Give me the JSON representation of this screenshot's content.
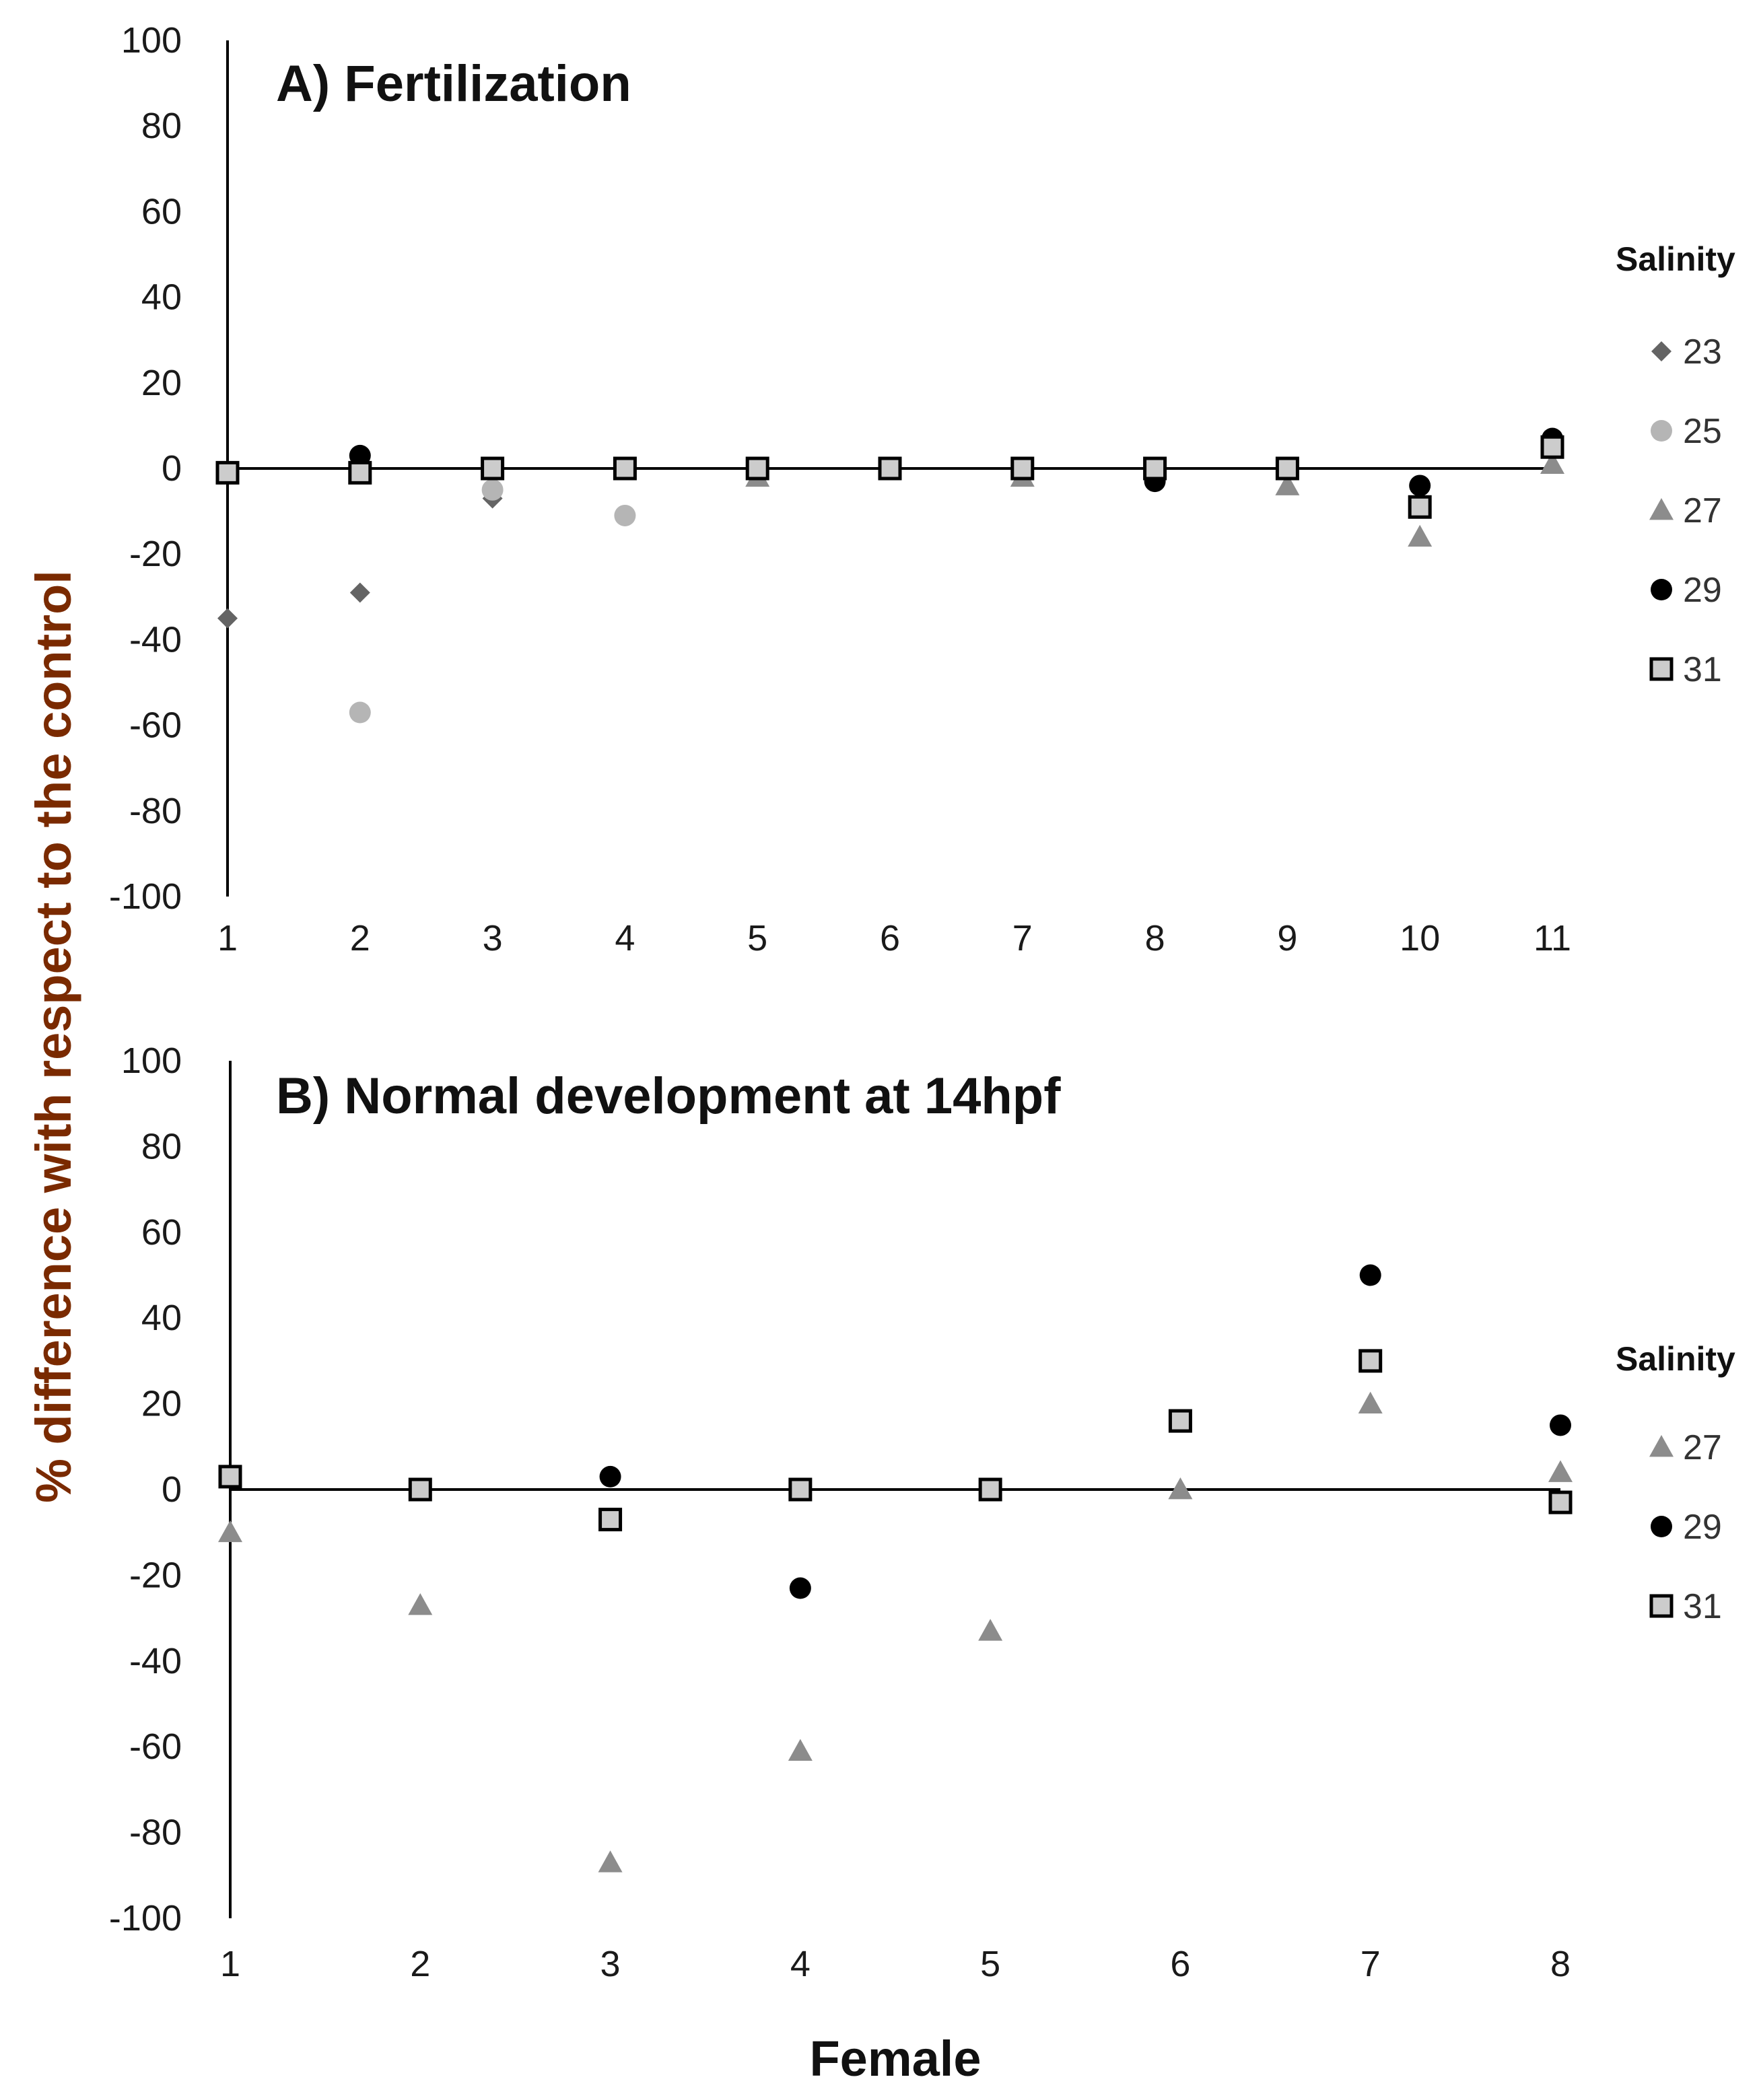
{
  "colors": {
    "23": "#646464",
    "25": "#b5b5b5",
    "27": "#8c8c8c",
    "29": "#000000",
    "31": "#cccccc",
    "axis": "#000000",
    "text": "#1a1a1a"
  },
  "ylabel": "% difference with respect to the control",
  "xlabel": "Female",
  "chart_data": [
    {
      "type": "scatter",
      "title": "A) Fertilization",
      "xlabel": "Female",
      "ylabel": "% difference with respect to the control",
      "x": [
        1,
        2,
        3,
        4,
        5,
        6,
        7,
        8,
        9,
        10,
        11
      ],
      "ylim": [
        -100,
        100
      ],
      "yticks": [
        100,
        80,
        60,
        40,
        20,
        0,
        -20,
        -40,
        -60,
        -80,
        -100
      ],
      "legend_title": "Salinity",
      "legend_position": "right",
      "series": [
        {
          "name": "23",
          "marker": "diamond",
          "values": [
            -35,
            -29,
            -7,
            null,
            null,
            null,
            null,
            null,
            null,
            null,
            null
          ]
        },
        {
          "name": "25",
          "marker": "circle",
          "values": [
            null,
            -57,
            -5,
            -11,
            null,
            null,
            null,
            null,
            null,
            null,
            null
          ]
        },
        {
          "name": "27",
          "marker": "triangle",
          "values": [
            null,
            null,
            null,
            null,
            -2,
            null,
            -2,
            null,
            -4,
            -16,
            1
          ]
        },
        {
          "name": "29",
          "marker": "circle",
          "values": [
            null,
            3,
            null,
            null,
            null,
            null,
            null,
            -3,
            null,
            -4,
            7
          ]
        },
        {
          "name": "31",
          "marker": "square",
          "values": [
            -1,
            -1,
            0,
            0,
            0,
            0,
            0,
            0,
            0,
            -9,
            5
          ]
        }
      ]
    },
    {
      "type": "scatter",
      "title": "B) Normal development at 14hpf",
      "xlabel": "Female",
      "ylabel": "% difference with respect to the control",
      "x": [
        1,
        2,
        3,
        4,
        5,
        6,
        7,
        8
      ],
      "ylim": [
        -100,
        100
      ],
      "yticks": [
        100,
        80,
        60,
        40,
        20,
        0,
        -20,
        -40,
        -60,
        -80,
        -100
      ],
      "legend_title": "Salinity",
      "legend_position": "right",
      "series": [
        {
          "name": "27",
          "marker": "triangle",
          "values": [
            -10,
            -27,
            -87,
            -61,
            -33,
            0,
            20,
            4
          ]
        },
        {
          "name": "29",
          "marker": "circle",
          "values": [
            null,
            null,
            3,
            -23,
            null,
            null,
            50,
            15
          ]
        },
        {
          "name": "31",
          "marker": "square",
          "values": [
            3,
            0,
            -7,
            0,
            0,
            16,
            30,
            -3
          ]
        }
      ]
    }
  ]
}
